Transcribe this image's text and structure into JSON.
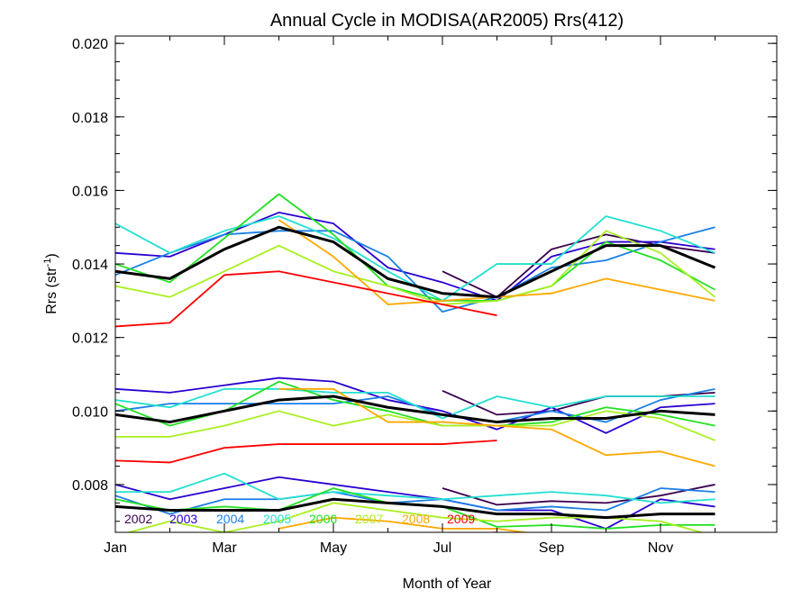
{
  "chart_data": {
    "type": "line",
    "title": "Annual Cycle in MODISA(AR2005) Rrs(412)",
    "xlabel": "Month of Year",
    "ylabel_main": "Rrs (str",
    "ylabel_sup": "-1",
    "ylabel_end": ")",
    "xlim": [
      0,
      12
    ],
    "ylim": [
      0.0067,
      0.0202
    ],
    "x_ticks": [
      {
        "v": 0,
        "label": "Jan"
      },
      {
        "v": 2,
        "label": "Mar"
      },
      {
        "v": 4,
        "label": "May"
      },
      {
        "v": 6,
        "label": "Jul"
      },
      {
        "v": 8,
        "label": "Sep"
      },
      {
        "v": 10,
        "label": "Nov"
      }
    ],
    "y_ticks": [
      {
        "v": 0.008,
        "label": "0.008"
      },
      {
        "v": 0.01,
        "label": "0.010"
      },
      {
        "v": 0.012,
        "label": "0.012"
      },
      {
        "v": 0.014,
        "label": "0.014"
      },
      {
        "v": 0.016,
        "label": "0.016"
      },
      {
        "v": 0.018,
        "label": "0.018"
      },
      {
        "v": 0.02,
        "label": "0.020"
      }
    ],
    "x": [
      0,
      1,
      2,
      3,
      4,
      5,
      6,
      7,
      8,
      9,
      10,
      11
    ],
    "legend": [
      {
        "label": "2002",
        "color": "#3a0050"
      },
      {
        "label": "2003",
        "color": "#2a00d0"
      },
      {
        "label": "2004",
        "color": "#1a7fe8"
      },
      {
        "label": "2005",
        "color": "#22e0d0"
      },
      {
        "label": "2006",
        "color": "#22e022"
      },
      {
        "label": "2007",
        "color": "#a8f020"
      },
      {
        "label": "2008",
        "color": "#ffa800"
      },
      {
        "label": "2009",
        "color": "#ff0000"
      }
    ],
    "mean_color": "#000000",
    "groups": [
      {
        "series": [
          {
            "name": "2002",
            "color": "#3a0050",
            "values": [
              null,
              null,
              null,
              null,
              null,
              null,
              0.0138,
              0.0131,
              0.0144,
              0.0148,
              0.0145,
              0.0143
            ]
          },
          {
            "name": "2003",
            "color": "#2a00d0",
            "values": [
              0.0143,
              0.0142,
              0.0148,
              0.0154,
              0.0151,
              0.0139,
              0.0135,
              0.013,
              0.0142,
              0.0146,
              0.0146,
              0.0144
            ]
          },
          {
            "name": "2004",
            "color": "#1a7fe8",
            "values": [
              0.0137,
              0.0143,
              0.0148,
              0.0149,
              0.0149,
              0.0142,
              0.0127,
              0.0131,
              0.0139,
              0.0141,
              0.0146,
              0.015
            ]
          },
          {
            "name": "2005",
            "color": "#22e0d0",
            "values": [
              0.0151,
              0.0143,
              0.0149,
              0.0153,
              0.0147,
              0.0138,
              0.013,
              0.014,
              0.014,
              0.0153,
              0.0149,
              0.0143
            ]
          },
          {
            "name": "2006",
            "color": "#22e022",
            "values": [
              0.014,
              0.0135,
              0.0147,
              0.0159,
              0.0148,
              0.0134,
              0.013,
              0.013,
              0.0134,
              0.0146,
              0.0141,
              0.0133
            ]
          },
          {
            "name": "2007",
            "color": "#a8f020",
            "values": [
              0.0134,
              0.0131,
              0.0138,
              0.0145,
              0.0138,
              0.0134,
              0.0129,
              0.013,
              0.0134,
              0.0149,
              0.0143,
              0.0131
            ]
          },
          {
            "name": "2008",
            "color": "#ffa800",
            "values": [
              null,
              null,
              null,
              0.0152,
              0.0142,
              0.0129,
              0.013,
              0.0131,
              0.0132,
              0.0136,
              0.0133,
              0.013
            ]
          },
          {
            "name": "2009",
            "color": "#ff0000",
            "values": [
              0.0123,
              0.0124,
              0.0137,
              0.0138,
              0.0135,
              0.0132,
              0.0129,
              0.0126,
              null,
              null,
              null,
              null
            ]
          }
        ],
        "mean": [
          0.0138,
          0.0136,
          0.0144,
          0.015,
          0.0146,
          0.0136,
          0.0132,
          0.0131,
          0.0138,
          0.0145,
          0.0145,
          0.0139
        ]
      },
      {
        "series": [
          {
            "name": "2002",
            "color": "#3a0050",
            "values": [
              null,
              null,
              null,
              null,
              null,
              null,
              0.01055,
              0.0099,
              0.01,
              0.0104,
              0.0104,
              0.0105
            ]
          },
          {
            "name": "2003",
            "color": "#2a00d0",
            "values": [
              0.0106,
              0.0105,
              0.0107,
              0.0109,
              0.0108,
              0.0103,
              0.01,
              0.0095,
              0.0101,
              0.0094,
              0.0101,
              0.0102
            ]
          },
          {
            "name": "2004",
            "color": "#1a7fe8",
            "values": [
              0.01,
              0.0102,
              0.0102,
              0.0102,
              0.0102,
              0.0104,
              0.0099,
              0.0097,
              0.01,
              0.0097,
              0.0103,
              0.0106
            ]
          },
          {
            "name": "2005",
            "color": "#22e0d0",
            "values": [
              0.0103,
              0.0101,
              0.0106,
              0.0106,
              0.0105,
              0.0105,
              0.0098,
              0.0104,
              0.0101,
              0.0104,
              0.0104,
              0.0104
            ]
          },
          {
            "name": "2006",
            "color": "#22e022",
            "values": [
              0.0102,
              0.0096,
              0.01,
              0.0108,
              0.0103,
              0.01,
              0.0096,
              0.0096,
              0.0097,
              0.0101,
              0.0099,
              0.0096
            ]
          },
          {
            "name": "2007",
            "color": "#a8f020",
            "values": [
              0.0093,
              0.0093,
              0.0096,
              0.01,
              0.0096,
              0.0099,
              0.0096,
              0.0096,
              0.0096,
              0.01,
              0.0098,
              0.0092
            ]
          },
          {
            "name": "2008",
            "color": "#ffa800",
            "values": [
              null,
              null,
              null,
              0.0106,
              0.0106,
              0.0097,
              0.0097,
              0.0096,
              0.0095,
              0.0088,
              0.0089,
              0.0085
            ]
          },
          {
            "name": "2009",
            "color": "#ff0000",
            "values": [
              0.00865,
              0.0086,
              0.009,
              0.0091,
              0.0091,
              0.0091,
              0.0091,
              0.0092,
              null,
              null,
              null,
              null
            ]
          }
        ],
        "mean": [
          0.0099,
          0.0097,
          0.01,
          0.0103,
          0.0104,
          0.0101,
          0.0099,
          0.0097,
          0.0098,
          0.0098,
          0.01,
          0.0099
        ]
      },
      {
        "series": [
          {
            "name": "2002",
            "color": "#3a0050",
            "values": [
              null,
              null,
              null,
              null,
              null,
              null,
              0.0079,
              0.00745,
              0.00755,
              0.0075,
              0.0077,
              0.008
            ]
          },
          {
            "name": "2003",
            "color": "#2a00d0",
            "values": [
              0.008,
              0.0076,
              0.0079,
              0.0082,
              0.008,
              0.0078,
              0.0076,
              0.0073,
              0.0073,
              0.0068,
              0.0076,
              0.0074
            ]
          },
          {
            "name": "2004",
            "color": "#1a7fe8",
            "values": [
              0.0077,
              0.0072,
              0.0076,
              0.0076,
              0.0078,
              0.0075,
              0.0076,
              0.0073,
              0.0074,
              0.0073,
              0.0079,
              0.0078
            ]
          },
          {
            "name": "2005",
            "color": "#22e0d0",
            "values": [
              0.0078,
              0.0078,
              0.0083,
              0.0076,
              0.0078,
              0.0077,
              0.0076,
              0.0077,
              0.0078,
              0.0077,
              0.0075,
              0.0076
            ]
          },
          {
            "name": "2006",
            "color": "#22e022",
            "values": [
              0.0076,
              0.0073,
              0.0074,
              0.0073,
              0.0079,
              0.0075,
              0.0074,
              0.00685,
              0.0069,
              0.0068,
              0.0069,
              0.0069
            ]
          },
          {
            "name": "2007",
            "color": "#a8f020",
            "values": [
              0.0066,
              0.007,
              0.0067,
              0.007,
              0.0075,
              0.0073,
              0.0071,
              0.007,
              0.0071,
              0.0071,
              0.007,
              0.0066
            ]
          },
          {
            "name": "2008",
            "color": "#ffa800",
            "values": [
              null,
              null,
              null,
              0.0068,
              0.0071,
              0.007,
              0.0068,
              0.0068,
              0.0066,
              null,
              null,
              null
            ]
          },
          {
            "name": "2009",
            "color": "#ff0000",
            "values": [
              null,
              null,
              null,
              null,
              null,
              null,
              0.0066,
              0.0067,
              null,
              null,
              null,
              null
            ]
          }
        ],
        "mean": [
          0.0074,
          0.0073,
          0.0073,
          0.0073,
          0.0076,
          0.0075,
          0.0074,
          0.0072,
          0.0072,
          0.0071,
          0.0072,
          0.0072
        ]
      }
    ]
  }
}
